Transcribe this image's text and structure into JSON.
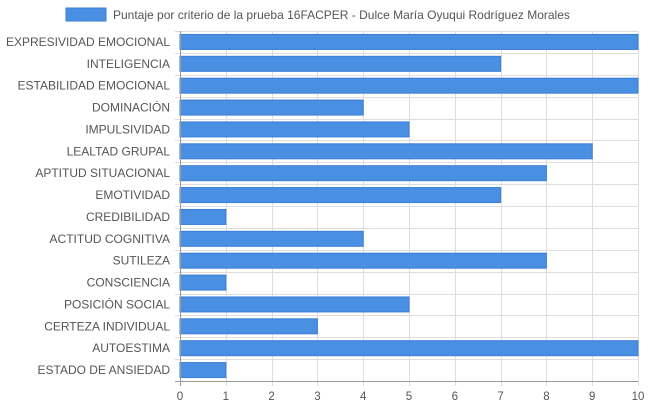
{
  "chart_data": {
    "type": "bar",
    "orientation": "horizontal",
    "categories": [
      "EXPRESIVIDAD EMOCIONAL",
      "INTELIGENCIA",
      "ESTABILIDAD EMOCIONAL",
      "DOMINACIÓN",
      "IMPULSIVIDAD",
      "LEALTAD GRUPAL",
      "APTITUD SITUACIONAL",
      "EMOTIVIDAD",
      "CREDIBILIDAD",
      "ACTITUD COGNITIVA",
      "SUTILEZA",
      "CONSCIENCIA",
      "POSICIÓN SOCIAL",
      "CERTEZA INDIVIDUAL",
      "AUTOESTIMA",
      "ESTADO DE ANSIEDAD"
    ],
    "series": [
      {
        "name": "Puntaje por criterio de la prueba 16FACPER - Dulce María Oyuqui Rodríguez Morales",
        "values": [
          10,
          7,
          10,
          4,
          5,
          9,
          8,
          7,
          1,
          4,
          8,
          1,
          5,
          3,
          10,
          1
        ],
        "color": "#4a90e2",
        "border_color": "#3b7dd8"
      }
    ],
    "xlim": [
      0,
      10
    ],
    "x_ticks": [
      "0",
      "1",
      "2",
      "3",
      "4",
      "5",
      "6",
      "7",
      "8",
      "9",
      "10"
    ],
    "grid": true,
    "legend_position": "top-center",
    "title": "",
    "xlabel": "",
    "ylabel": "",
    "grid_color": "#dddddd",
    "axis_color": "#999999",
    "text_color": "#555555"
  }
}
